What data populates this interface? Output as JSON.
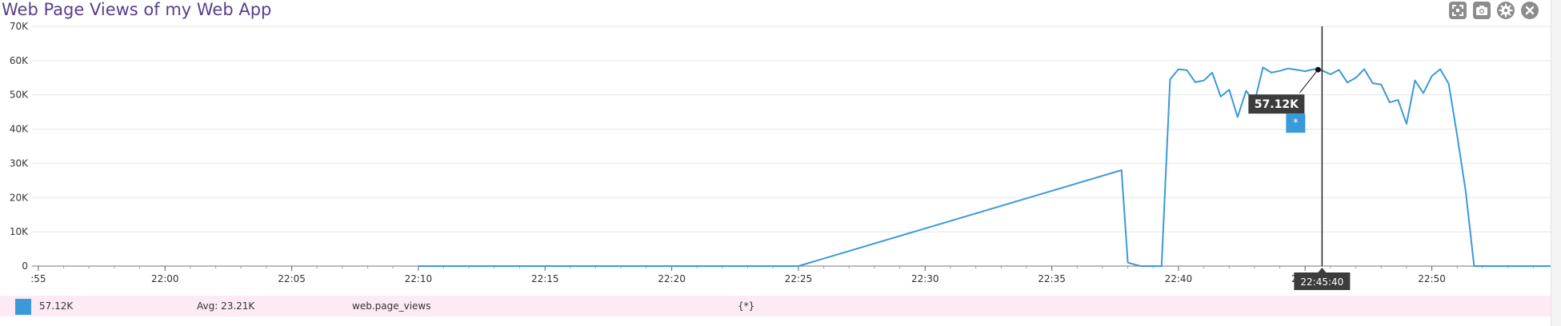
{
  "window": {
    "title": "Web Page Views of my Web App"
  },
  "toolbar": {
    "buttons": [
      {
        "name": "expand-icon"
      },
      {
        "name": "camera-icon"
      },
      {
        "name": "gear-icon"
      },
      {
        "name": "close-icon"
      }
    ]
  },
  "chart_data": {
    "type": "line",
    "title": "Web Page Views of my Web App",
    "xlabel": "",
    "ylabel": "",
    "ylim": [
      0,
      70000
    ],
    "xlim": [
      "21:54:45",
      "22:54:45"
    ],
    "y_ticks": [
      {
        "value": 0,
        "label": "0"
      },
      {
        "value": 10000,
        "label": "10K"
      },
      {
        "value": 20000,
        "label": "20K"
      },
      {
        "value": 30000,
        "label": "30K"
      },
      {
        "value": 40000,
        "label": "40K"
      },
      {
        "value": 50000,
        "label": "50K"
      },
      {
        "value": 60000,
        "label": "60K"
      },
      {
        "value": 70000,
        "label": "70K"
      }
    ],
    "x_ticks": [
      {
        "value": "21:55",
        "label": ":55"
      },
      {
        "value": "22:00",
        "label": "22:00"
      },
      {
        "value": "22:05",
        "label": "22:05"
      },
      {
        "value": "22:10",
        "label": "22:10"
      },
      {
        "value": "22:15",
        "label": "22:15"
      },
      {
        "value": "22:20",
        "label": "22:20"
      },
      {
        "value": "22:25",
        "label": "22:25"
      },
      {
        "value": "22:30",
        "label": "22:30"
      },
      {
        "value": "22:35",
        "label": "22:35"
      },
      {
        "value": "22:40",
        "label": "22:40"
      },
      {
        "value": "22:45",
        "label": "22:45"
      },
      {
        "value": "22:50",
        "label": "22:50"
      }
    ],
    "grid": true,
    "color": "#3a9ad9",
    "series": [
      {
        "name": "web.page_views",
        "x": [
          "22:10:00",
          "22:25:00",
          "22:37:45",
          "22:38:00",
          "22:38:30",
          "22:39:20",
          "22:39:40",
          "22:40:00",
          "22:40:20",
          "22:40:40",
          "22:41:00",
          "22:41:20",
          "22:41:40",
          "22:42:00",
          "22:42:20",
          "22:42:40",
          "22:43:00",
          "22:43:20",
          "22:43:40",
          "22:44:00",
          "22:44:20",
          "22:44:40",
          "22:45:00",
          "22:45:20",
          "22:45:40",
          "22:46:00",
          "22:46:20",
          "22:46:40",
          "22:47:00",
          "22:47:20",
          "22:47:40",
          "22:48:00",
          "22:48:20",
          "22:48:40",
          "22:49:00",
          "22:49:20",
          "22:49:40",
          "22:50:00",
          "22:50:20",
          "22:50:40",
          "22:51:00",
          "22:51:20",
          "22:51:40",
          "22:52:00",
          "22:52:20",
          "22:54:45"
        ],
        "y": [
          0,
          0,
          28000,
          1000,
          0,
          0,
          54500,
          57500,
          57200,
          53700,
          54200,
          56500,
          49500,
          51500,
          43500,
          51200,
          47800,
          58000,
          56500,
          57000,
          57700,
          57300,
          56900,
          57500,
          57120,
          56000,
          57300,
          53600,
          55000,
          57500,
          53400,
          53000,
          47800,
          48500,
          41500,
          54200,
          50500,
          55500,
          57500,
          53200,
          38000,
          22000,
          0,
          0,
          0,
          0
        ]
      }
    ],
    "hover": {
      "x": "22:45:40",
      "y": 57120,
      "value_label": "57.12K",
      "time_label": "22:45:40",
      "marker_text": "*"
    },
    "legend": {
      "value": "57.12K",
      "avg": "Avg: 23.21K",
      "metric": "web.page_views",
      "scope": "{*}"
    }
  }
}
